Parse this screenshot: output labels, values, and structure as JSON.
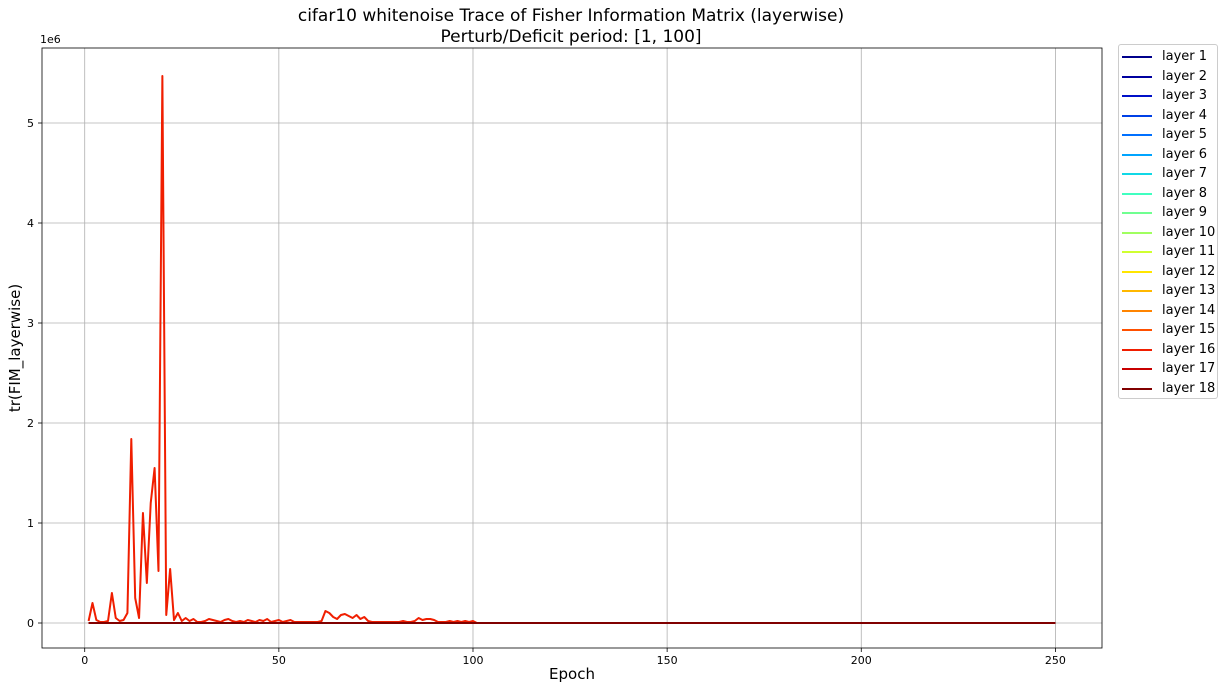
{
  "chart_data": {
    "type": "line",
    "title": "cifar10 whitenoise Trace of Fisher Information Matrix (layerwise)",
    "subtitle": "Perturb/Deficit period: [1, 100]",
    "xlabel": "Epoch",
    "ylabel": "tr(FIM_layerwise)",
    "y_offset_label": "1e6",
    "xlim": [
      -11,
      262
    ],
    "ylim": [
      -0.25,
      5.75
    ],
    "xticks": [
      0,
      50,
      100,
      150,
      200,
      250
    ],
    "yticks": [
      0,
      1,
      2,
      3,
      4,
      5
    ],
    "grid": true,
    "legend_position": "outside-right",
    "series": [
      {
        "name": "layer 1",
        "color": "#00008b",
        "points": [
          [
            1,
            0
          ],
          [
            250,
            0
          ]
        ]
      },
      {
        "name": "layer 2",
        "color": "#00009f",
        "points": [
          [
            1,
            0
          ],
          [
            250,
            0
          ]
        ]
      },
      {
        "name": "layer 3",
        "color": "#0010c8",
        "points": [
          [
            1,
            0
          ],
          [
            250,
            0
          ]
        ]
      },
      {
        "name": "layer 4",
        "color": "#0040e6",
        "points": [
          [
            1,
            0
          ],
          [
            250,
            0
          ]
        ]
      },
      {
        "name": "layer 5",
        "color": "#0070ff",
        "points": [
          [
            1,
            0
          ],
          [
            250,
            0
          ]
        ]
      },
      {
        "name": "layer 6",
        "color": "#00a4ff",
        "points": [
          [
            1,
            0
          ],
          [
            250,
            0
          ]
        ]
      },
      {
        "name": "layer 7",
        "color": "#10d8e6",
        "points": [
          [
            1,
            0
          ],
          [
            250,
            0
          ]
        ]
      },
      {
        "name": "layer 8",
        "color": "#40ffc0",
        "points": [
          [
            1,
            0
          ],
          [
            250,
            0
          ]
        ]
      },
      {
        "name": "layer 9",
        "color": "#70ff90",
        "points": [
          [
            1,
            0
          ],
          [
            250,
            0
          ]
        ]
      },
      {
        "name": "layer 10",
        "color": "#a0ff60",
        "points": [
          [
            1,
            0
          ],
          [
            250,
            0
          ]
        ]
      },
      {
        "name": "layer 11",
        "color": "#d0ff30",
        "points": [
          [
            1,
            0
          ],
          [
            250,
            0
          ]
        ]
      },
      {
        "name": "layer 12",
        "color": "#ffe600",
        "points": [
          [
            1,
            0
          ],
          [
            250,
            0
          ]
        ]
      },
      {
        "name": "layer 13",
        "color": "#ffb800",
        "points": [
          [
            1,
            0
          ],
          [
            250,
            0
          ]
        ]
      },
      {
        "name": "layer 14",
        "color": "#ff8400",
        "points": [
          [
            1,
            0
          ],
          [
            250,
            0
          ]
        ]
      },
      {
        "name": "layer 15",
        "color": "#ff5000",
        "points": [
          [
            1,
            0
          ],
          [
            250,
            0
          ]
        ]
      },
      {
        "name": "layer 16",
        "color": "#f01e00",
        "points": [
          [
            1,
            0.02
          ],
          [
            2,
            0.2
          ],
          [
            3,
            0.03
          ],
          [
            4,
            0.01
          ],
          [
            5,
            0.01
          ],
          [
            6,
            0.02
          ],
          [
            7,
            0.3
          ],
          [
            8,
            0.05
          ],
          [
            9,
            0.02
          ],
          [
            10,
            0.03
          ],
          [
            11,
            0.1
          ],
          [
            12,
            1.84
          ],
          [
            13,
            0.25
          ],
          [
            14,
            0.05
          ],
          [
            15,
            1.1
          ],
          [
            16,
            0.4
          ],
          [
            17,
            1.2
          ],
          [
            18,
            1.55
          ],
          [
            19,
            0.52
          ],
          [
            20,
            5.47
          ],
          [
            21,
            0.08
          ],
          [
            22,
            0.54
          ],
          [
            23,
            0.03
          ],
          [
            24,
            0.1
          ],
          [
            25,
            0.02
          ],
          [
            26,
            0.05
          ],
          [
            27,
            0.02
          ],
          [
            28,
            0.04
          ],
          [
            29,
            0.01
          ],
          [
            30,
            0.01
          ],
          [
            31,
            0.02
          ],
          [
            32,
            0.04
          ],
          [
            33,
            0.03
          ],
          [
            34,
            0.02
          ],
          [
            35,
            0.01
          ],
          [
            36,
            0.03
          ],
          [
            37,
            0.04
          ],
          [
            38,
            0.02
          ],
          [
            39,
            0.01
          ],
          [
            40,
            0.02
          ],
          [
            41,
            0.01
          ],
          [
            42,
            0.03
          ],
          [
            43,
            0.02
          ],
          [
            44,
            0.01
          ],
          [
            45,
            0.03
          ],
          [
            46,
            0.02
          ],
          [
            47,
            0.04
          ],
          [
            48,
            0.01
          ],
          [
            49,
            0.02
          ],
          [
            50,
            0.03
          ],
          [
            51,
            0.01
          ],
          [
            52,
            0.02
          ],
          [
            53,
            0.03
          ],
          [
            54,
            0.01
          ],
          [
            55,
            0.01
          ],
          [
            56,
            0.01
          ],
          [
            57,
            0.01
          ],
          [
            58,
            0.01
          ],
          [
            59,
            0.01
          ],
          [
            60,
            0.01
          ],
          [
            61,
            0.02
          ],
          [
            62,
            0.12
          ],
          [
            63,
            0.1
          ],
          [
            64,
            0.06
          ],
          [
            65,
            0.04
          ],
          [
            66,
            0.08
          ],
          [
            67,
            0.09
          ],
          [
            68,
            0.07
          ],
          [
            69,
            0.05
          ],
          [
            70,
            0.08
          ],
          [
            71,
            0.04
          ],
          [
            72,
            0.06
          ],
          [
            73,
            0.02
          ],
          [
            74,
            0.01
          ],
          [
            75,
            0.01
          ],
          [
            76,
            0.01
          ],
          [
            77,
            0.01
          ],
          [
            78,
            0.01
          ],
          [
            79,
            0.01
          ],
          [
            80,
            0.01
          ],
          [
            81,
            0.01
          ],
          [
            82,
            0.02
          ],
          [
            83,
            0.01
          ],
          [
            84,
            0.01
          ],
          [
            85,
            0.02
          ],
          [
            86,
            0.05
          ],
          [
            87,
            0.03
          ],
          [
            88,
            0.04
          ],
          [
            89,
            0.04
          ],
          [
            90,
            0.03
          ],
          [
            91,
            0.01
          ],
          [
            92,
            0.01
          ],
          [
            93,
            0.01
          ],
          [
            94,
            0.02
          ],
          [
            95,
            0.01
          ],
          [
            96,
            0.02
          ],
          [
            97,
            0.01
          ],
          [
            98,
            0.02
          ],
          [
            99,
            0.01
          ],
          [
            100,
            0.02
          ],
          [
            101,
            0.0
          ],
          [
            250,
            0.0
          ]
        ]
      },
      {
        "name": "layer 17",
        "color": "#c80000",
        "points": [
          [
            1,
            0
          ],
          [
            250,
            0
          ]
        ]
      },
      {
        "name": "layer 18",
        "color": "#800000",
        "points": [
          [
            1,
            0
          ],
          [
            250,
            0
          ]
        ]
      }
    ]
  }
}
